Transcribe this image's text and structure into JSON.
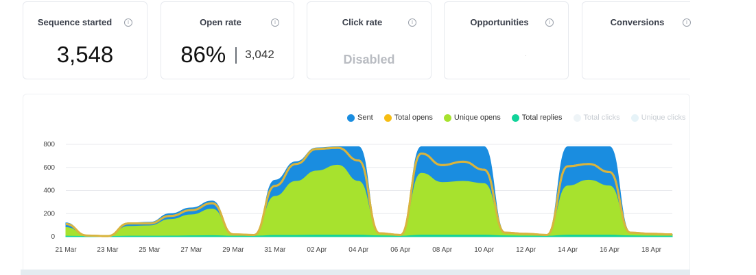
{
  "stats": {
    "sequence_started": {
      "title": "Sequence started",
      "value": "3,548"
    },
    "open_rate": {
      "title": "Open rate",
      "value": "86%",
      "sub": "3,042"
    },
    "click_rate": {
      "title": "Click rate",
      "value": "Disabled"
    },
    "opportunities": {
      "title": "Opportunities"
    },
    "conversions": {
      "title": "Conversions"
    }
  },
  "legend": [
    {
      "label": "Sent",
      "color": "#1a8de0",
      "muted": false
    },
    {
      "label": "Total opens",
      "color": "#f6bd12",
      "muted": false
    },
    {
      "label": "Unique opens",
      "color": "#a7e22e",
      "muted": false
    },
    {
      "label": "Total replies",
      "color": "#12d39a",
      "muted": false
    },
    {
      "label": "Total clicks",
      "color": "#eef4f7",
      "muted": true
    },
    {
      "label": "Unique clicks",
      "color": "#e6f3f8",
      "muted": true
    }
  ],
  "chart_data": {
    "type": "area",
    "x": [
      "21 Mar",
      "22 Mar",
      "23 Mar",
      "24 Mar",
      "25 Mar",
      "26 Mar",
      "27 Mar",
      "28 Mar",
      "29 Mar",
      "30 Mar",
      "31 Mar",
      "01 Apr",
      "02 Apr",
      "03 Apr",
      "04 Apr",
      "05 Apr",
      "06 Apr",
      "07 Apr",
      "08 Apr",
      "09 Apr",
      "10 Apr",
      "11 Apr",
      "12 Apr",
      "13 Apr",
      "14 Apr",
      "15 Apr",
      "16 Apr",
      "17 Apr",
      "18 Apr",
      "19 Apr"
    ],
    "x_tick_labels": [
      "21 Mar",
      "23 Mar",
      "25 Mar",
      "27 Mar",
      "29 Mar",
      "31 Mar",
      "02 Apr",
      "04 Apr",
      "06 Apr",
      "08 Apr",
      "10 Apr",
      "12 Apr",
      "14 Apr",
      "16 Apr",
      "18 Apr"
    ],
    "y_ticks": [
      0,
      200,
      400,
      600,
      800
    ],
    "ylim": [
      0,
      800
    ],
    "series": [
      {
        "name": "Sent",
        "color": "#1a8de0",
        "values": [
          120,
          10,
          5,
          120,
          125,
          200,
          250,
          310,
          20,
          15,
          490,
          650,
          770,
          780,
          780,
          30,
          15,
          780,
          780,
          780,
          780,
          40,
          25,
          15,
          780,
          780,
          780,
          40,
          25,
          20
        ]
      },
      {
        "name": "Total opens",
        "color": "#f6bd12",
        "values": [
          110,
          10,
          5,
          115,
          115,
          180,
          230,
          290,
          20,
          15,
          440,
          630,
          760,
          770,
          660,
          30,
          15,
          720,
          620,
          650,
          580,
          35,
          25,
          15,
          610,
          630,
          560,
          35,
          25,
          20
        ]
      },
      {
        "name": "Unique opens",
        "color": "#a7e22e",
        "values": [
          80,
          10,
          5,
          90,
          95,
          150,
          190,
          240,
          15,
          12,
          350,
          480,
          570,
          620,
          480,
          25,
          12,
          550,
          470,
          480,
          460,
          30,
          22,
          12,
          440,
          490,
          440,
          30,
          22,
          15
        ]
      },
      {
        "name": "Total replies",
        "color": "#12d39a",
        "values": [
          5,
          3,
          3,
          5,
          5,
          6,
          8,
          10,
          5,
          5,
          12,
          12,
          14,
          14,
          14,
          8,
          5,
          14,
          14,
          14,
          14,
          8,
          6,
          5,
          14,
          14,
          14,
          8,
          6,
          5
        ]
      }
    ]
  }
}
